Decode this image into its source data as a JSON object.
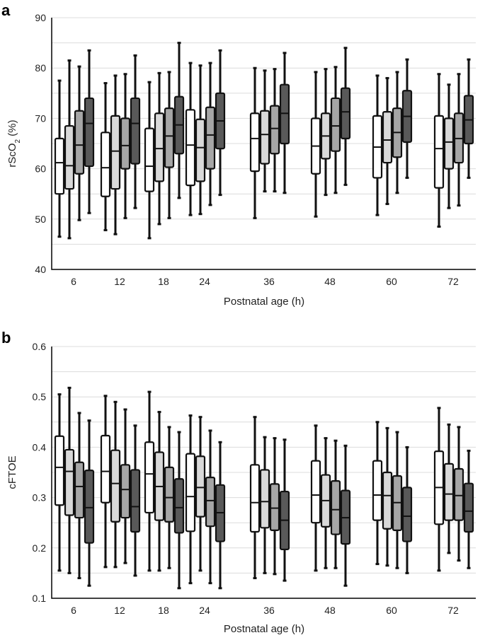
{
  "chart_data": [
    {
      "type": "box",
      "panel": "a",
      "xlabel": "Postnatal age (h)",
      "ylabel_main": "rScO",
      "ylabel_sub": "2",
      "ylabel_tail": " (%)",
      "ylim": [
        40,
        90
      ],
      "yticks": [
        40,
        50,
        60,
        70,
        80,
        90
      ],
      "grid": true,
      "categories": [
        "6",
        "12",
        "18",
        "24",
        "36",
        "48",
        "60",
        "72"
      ],
      "series_colors": [
        "#ffffff",
        "#d9d9d9",
        "#a6a6a6",
        "#595959"
      ],
      "boxes": [
        [
          [
            46.5,
            55,
            61.2,
            66,
            77.5
          ],
          [
            46.2,
            56,
            60.6,
            68.5,
            81.5
          ],
          [
            49.8,
            59,
            64.7,
            71.5,
            80.3
          ],
          [
            51.2,
            60.5,
            69,
            74,
            83.5
          ]
        ],
        [
          [
            47.8,
            54.5,
            60.2,
            67.2,
            77
          ],
          [
            47,
            56,
            63.5,
            70.5,
            78.5
          ],
          [
            50.2,
            60,
            64.6,
            70,
            78.8
          ],
          [
            52.2,
            61,
            69,
            74,
            82.5
          ]
        ],
        [
          [
            46.2,
            55.5,
            60.5,
            68,
            77.2
          ],
          [
            49,
            57.5,
            64,
            71,
            79
          ],
          [
            50.2,
            60.3,
            66.5,
            72,
            79.2
          ],
          [
            54.2,
            63,
            68.7,
            74.3,
            85
          ]
        ],
        [
          [
            50.8,
            56.7,
            64.7,
            71.7,
            81
          ],
          [
            51,
            57.5,
            64.2,
            69.8,
            80.5
          ],
          [
            52.8,
            60,
            66.7,
            72.2,
            81
          ],
          [
            54.8,
            64,
            69.5,
            75,
            83.5
          ]
        ],
        [
          [
            50.2,
            59.5,
            66,
            71,
            80
          ],
          [
            55.5,
            61,
            66.8,
            71.5,
            79.5
          ],
          [
            55.5,
            63,
            68,
            72.5,
            79.8
          ],
          [
            55.2,
            65,
            71,
            76.7,
            83
          ]
        ],
        [
          [
            50.5,
            59,
            64.5,
            70,
            79.2
          ],
          [
            54.8,
            62,
            66.5,
            71,
            79.8
          ],
          [
            55.2,
            63.5,
            68.5,
            74,
            80.2
          ],
          [
            56.8,
            66,
            71.3,
            76,
            84
          ]
        ],
        [
          [
            50.8,
            58.2,
            64.3,
            70.5,
            78.5
          ],
          [
            53,
            61.2,
            65.7,
            71.3,
            78
          ],
          [
            55.2,
            62.3,
            67.2,
            72,
            79.2
          ],
          [
            58.2,
            65.3,
            70.4,
            75.5,
            81.7
          ]
        ],
        [
          [
            48.5,
            56.2,
            64,
            70.5,
            78.8
          ],
          [
            52.2,
            60,
            65.3,
            70,
            76.7
          ],
          [
            52.7,
            61.2,
            66,
            71,
            78.8
          ],
          [
            58.2,
            65,
            69.7,
            74.5,
            81.7
          ]
        ]
      ]
    },
    {
      "type": "box",
      "panel": "b",
      "xlabel": "Postnatal age (h)",
      "ylabel": "cFTOE",
      "ylim": [
        0.1,
        0.6
      ],
      "yticks": [
        "0.1",
        "0.2",
        "0.3",
        "0.4",
        "0.5",
        "0.6"
      ],
      "grid": true,
      "categories": [
        "6",
        "12",
        "18",
        "24",
        "36",
        "48",
        "60",
        "72"
      ],
      "series_colors": [
        "#ffffff",
        "#d9d9d9",
        "#a6a6a6",
        "#595959"
      ],
      "boxes": [
        [
          [
            0.155,
            0.285,
            0.36,
            0.422,
            0.505
          ],
          [
            0.15,
            0.265,
            0.352,
            0.395,
            0.518
          ],
          [
            0.14,
            0.26,
            0.322,
            0.37,
            0.468
          ],
          [
            0.125,
            0.21,
            0.28,
            0.354,
            0.453
          ]
        ],
        [
          [
            0.162,
            0.29,
            0.352,
            0.423,
            0.502
          ],
          [
            0.162,
            0.252,
            0.328,
            0.394,
            0.49
          ],
          [
            0.17,
            0.26,
            0.316,
            0.365,
            0.475
          ],
          [
            0.145,
            0.232,
            0.282,
            0.355,
            0.443
          ]
        ],
        [
          [
            0.155,
            0.27,
            0.347,
            0.41,
            0.51
          ],
          [
            0.155,
            0.255,
            0.322,
            0.39,
            0.47
          ],
          [
            0.16,
            0.252,
            0.3,
            0.36,
            0.44
          ],
          [
            0.12,
            0.23,
            0.28,
            0.337,
            0.43
          ]
        ],
        [
          [
            0.13,
            0.233,
            0.302,
            0.387,
            0.463
          ],
          [
            0.155,
            0.262,
            0.32,
            0.382,
            0.46
          ],
          [
            0.13,
            0.243,
            0.294,
            0.34,
            0.433
          ],
          [
            0.12,
            0.213,
            0.27,
            0.325,
            0.41
          ]
        ],
        [
          [
            0.14,
            0.232,
            0.29,
            0.365,
            0.46
          ],
          [
            0.15,
            0.24,
            0.292,
            0.355,
            0.42
          ],
          [
            0.148,
            0.235,
            0.279,
            0.327,
            0.418
          ],
          [
            0.135,
            0.197,
            0.255,
            0.312,
            0.415
          ]
        ],
        [
          [
            0.155,
            0.25,
            0.305,
            0.373,
            0.443
          ],
          [
            0.16,
            0.242,
            0.294,
            0.345,
            0.418
          ],
          [
            0.16,
            0.227,
            0.276,
            0.333,
            0.413
          ],
          [
            0.125,
            0.208,
            0.26,
            0.314,
            0.403
          ]
        ],
        [
          [
            0.168,
            0.255,
            0.305,
            0.373,
            0.45
          ],
          [
            0.165,
            0.238,
            0.304,
            0.35,
            0.438
          ],
          [
            0.16,
            0.235,
            0.29,
            0.343,
            0.43
          ],
          [
            0.15,
            0.213,
            0.263,
            0.32,
            0.4
          ]
        ],
        [
          [
            0.155,
            0.247,
            0.32,
            0.392,
            0.478
          ],
          [
            0.19,
            0.255,
            0.307,
            0.367,
            0.445
          ],
          [
            0.175,
            0.255,
            0.304,
            0.357,
            0.44
          ],
          [
            0.16,
            0.232,
            0.273,
            0.328,
            0.393
          ]
        ]
      ]
    }
  ]
}
